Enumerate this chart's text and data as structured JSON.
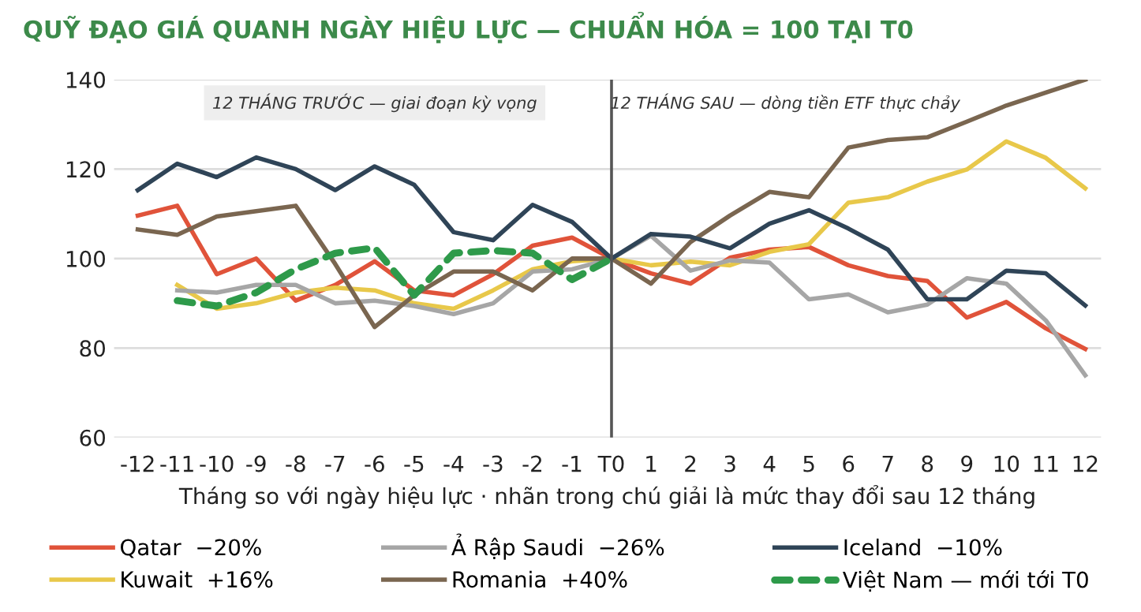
{
  "chart_data": {
    "type": "line",
    "title": "QUỸ ĐẠO GIÁ QUANH NGÀY HIỆU LỰC — CHUẨN HÓA = 100 TẠI T0",
    "xlabel": "Tháng so với ngày hiệu lực · nhãn trong chú giải là mức thay đổi sau 12 tháng",
    "x": [
      -12,
      -11,
      -10,
      -9,
      -8,
      -7,
      -6,
      -5,
      -4,
      -3,
      -2,
      -1,
      0,
      1,
      2,
      3,
      4,
      5,
      6,
      7,
      8,
      9,
      10,
      11,
      12
    ],
    "xlim": [
      -12.6,
      12.4
    ],
    "xticks": [
      -12,
      -11,
      -10,
      -9,
      -8,
      -7,
      -6,
      -5,
      -4,
      -3,
      -2,
      -1,
      {
        "value": 0,
        "label": "T0"
      },
      1,
      2,
      3,
      4,
      5,
      6,
      7,
      8,
      9,
      10,
      11,
      12
    ],
    "ylim": [
      60,
      140
    ],
    "yticks": [
      60,
      80,
      100,
      120,
      140
    ],
    "grid": "y",
    "legend": "bottom",
    "marker": "none",
    "line_style": "solid",
    "series": [
      {
        "name": "Qatar  −20%",
        "color": "#e0533a",
        "values": [
          109.6,
          111.8,
          96.5,
          100,
          90.6,
          94.1,
          99.4,
          92.9,
          91.8,
          96.5,
          102.9,
          104.7,
          100,
          96.7,
          94.4,
          100.2,
          102,
          102.6,
          98.5,
          96.1,
          95,
          86.8,
          90.3,
          84.4,
          79.8
        ]
      },
      {
        "name": "Kuwait  +16%",
        "color": "#e8c84a",
        "values": [
          null,
          94.1,
          88.8,
          90,
          92.4,
          93.5,
          92.9,
          90,
          88.8,
          92.9,
          97.6,
          99.4,
          100,
          98.5,
          99.3,
          98.5,
          101.5,
          103.2,
          112.5,
          113.7,
          117.2,
          119.9,
          126.2,
          122.5,
          115.7
        ]
      },
      {
        "name": "Ả Rập Saudi  −26%",
        "color": "#a6a6a6",
        "values": [
          null,
          92.9,
          92.4,
          94.1,
          94.1,
          90,
          90.6,
          89.4,
          87.6,
          90,
          97.1,
          97.6,
          100,
          105.1,
          97.3,
          99.6,
          99.1,
          90.9,
          92,
          88,
          89.7,
          95.6,
          94.4,
          86.2,
          73.9
        ]
      },
      {
        "name": "Romania  +40%",
        "color": "#7a6650",
        "values": [
          106.5,
          105.3,
          109.4,
          110.6,
          111.8,
          98.8,
          84.7,
          91.8,
          97.1,
          97.1,
          92.9,
          100,
          100,
          94.4,
          103.7,
          109.6,
          114.9,
          113.7,
          124.8,
          126.5,
          127.1,
          130.6,
          134.2,
          137.1,
          140
        ]
      },
      {
        "name": "Iceland  −10%",
        "color": "#2f4457",
        "values": [
          115.3,
          121.2,
          118.2,
          122.6,
          120,
          115.3,
          120.6,
          116.5,
          105.9,
          104.1,
          112,
          108.2,
          100,
          105.5,
          104.9,
          102.3,
          107.8,
          110.8,
          106.7,
          102,
          90.9,
          90.9,
          97.3,
          96.7,
          89.5
        ]
      },
      {
        "name": "Việt Nam — mới tới T0",
        "color": "#2e9a4a",
        "line_style": "dashed",
        "values": [
          null,
          90.6,
          89.4,
          92.4,
          97.6,
          101.2,
          102.4,
          91.8,
          101.2,
          101.8,
          101.2,
          95.3,
          100,
          null,
          null,
          null,
          null,
          null,
          null,
          null,
          null,
          null,
          null,
          null,
          null
        ]
      }
    ],
    "ref_lines": [
      {
        "axis": "x",
        "value": 0,
        "color": "#555555"
      }
    ],
    "annotations": [
      "12 THÁNG TRƯỚC — giai đoạn kỳ vọng",
      "12 THÁNG SAU — dòng tiền ETF thực chảy"
    ]
  }
}
